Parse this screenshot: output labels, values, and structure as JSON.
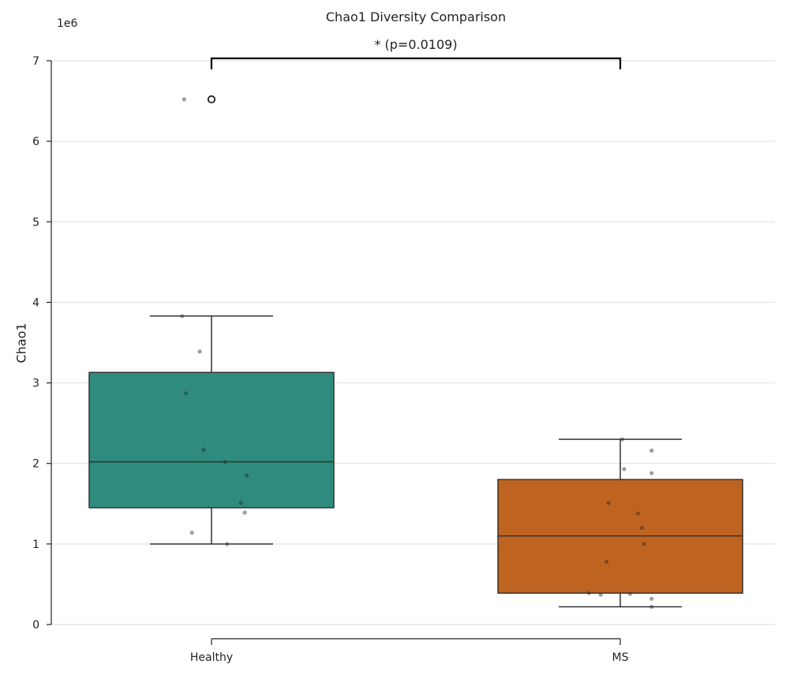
{
  "chart_data": {
    "type": "box",
    "title": "Chao1 Diversity Comparison",
    "ylabel": "Chao1",
    "xlabel": "",
    "scale_label": "1e6",
    "ylim": [
      0,
      7
    ],
    "yticks": [
      "0",
      "1",
      "2",
      "3",
      "4",
      "5",
      "6",
      "7"
    ],
    "grid": true,
    "categories": [
      "Healthy",
      "MS"
    ],
    "boxes": [
      {
        "category": "Healthy",
        "color": "#2e8b7d",
        "q1": 1.45,
        "median": 2.02,
        "q3": 3.13,
        "whisker_low": 1.0,
        "whisker_high": 3.83,
        "outliers": [
          6.52
        ],
        "points": [
          {
            "y": 6.52,
            "dx": -0.14
          },
          {
            "y": 3.83,
            "dx": -0.15
          },
          {
            "y": 3.39,
            "dx": -0.06
          },
          {
            "y": 2.87,
            "dx": -0.13
          },
          {
            "y": 2.17,
            "dx": -0.04
          },
          {
            "y": 2.02,
            "dx": 0.07
          },
          {
            "y": 1.85,
            "dx": 0.18
          },
          {
            "y": 1.51,
            "dx": 0.15
          },
          {
            "y": 1.39,
            "dx": 0.17
          },
          {
            "y": 1.14,
            "dx": -0.1
          },
          {
            "y": 1.0,
            "dx": 0.08
          }
        ]
      },
      {
        "category": "MS",
        "color": "#bf6420",
        "q1": 0.39,
        "median": 1.1,
        "q3": 1.8,
        "whisker_low": 0.22,
        "whisker_high": 2.3,
        "outliers": [],
        "points": [
          {
            "y": 2.3,
            "dx": 0.01
          },
          {
            "y": 2.16,
            "dx": 0.16
          },
          {
            "y": 1.93,
            "dx": 0.02
          },
          {
            "y": 1.88,
            "dx": 0.16
          },
          {
            "y": 1.51,
            "dx": -0.06
          },
          {
            "y": 1.38,
            "dx": 0.09
          },
          {
            "y": 1.2,
            "dx": 0.11
          },
          {
            "y": 1.0,
            "dx": 0.12
          },
          {
            "y": 0.78,
            "dx": -0.07
          },
          {
            "y": 0.39,
            "dx": -0.16
          },
          {
            "y": 0.37,
            "dx": -0.1
          },
          {
            "y": 0.38,
            "dx": 0.05
          },
          {
            "y": 0.32,
            "dx": 0.16
          },
          {
            "y": 0.22,
            "dx": 0.16
          }
        ]
      }
    ],
    "annotation": {
      "text": "*  (p=0.0109)",
      "between": [
        "Healthy",
        "MS"
      ]
    }
  }
}
